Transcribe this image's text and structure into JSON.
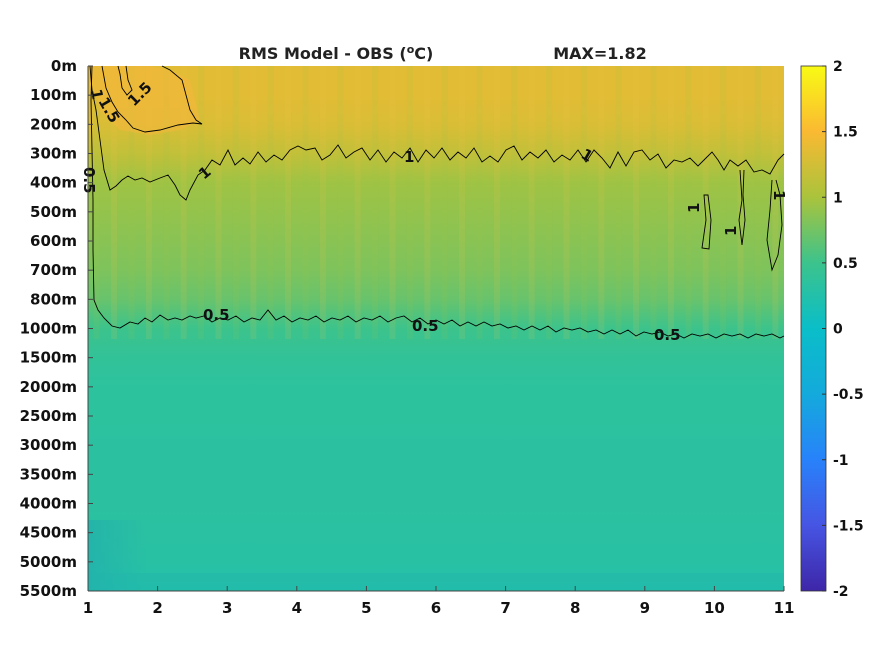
{
  "chart_data": {
    "type": "heatmap",
    "title_main": "RMS Model - OBS (",
    "title_sup": "o",
    "title_end": "C)",
    "title_max": "MAX=1.82",
    "x_ticks": [
      1,
      2,
      3,
      4,
      5,
      6,
      7,
      8,
      9,
      10,
      11
    ],
    "xlim": [
      1,
      11
    ],
    "y_tick_labels": [
      "0m",
      "100m",
      "200m",
      "300m",
      "400m",
      "500m",
      "600m",
      "700m",
      "800m",
      "1000m",
      "1500m",
      "2000m",
      "2500m",
      "3000m",
      "3500m",
      "4000m",
      "4500m",
      "5000m",
      "5500m"
    ],
    "y_reversed": true,
    "colorbar": {
      "range": [
        -2,
        2
      ],
      "ticks": [
        "2",
        "1.5",
        "1",
        "0.5",
        "0",
        "-0.5",
        "-1",
        "-1.5",
        "-2"
      ],
      "colormap": "parula"
    },
    "depth_profile": [
      {
        "depth": "0m",
        "value": 1.35
      },
      {
        "depth": "100m",
        "value": 1.35
      },
      {
        "depth": "200m",
        "value": 1.3
      },
      {
        "depth": "300m",
        "value": 1.15
      },
      {
        "depth": "400m",
        "value": 0.95
      },
      {
        "depth": "500m",
        "value": 0.9
      },
      {
        "depth": "600m",
        "value": 0.85
      },
      {
        "depth": "700m",
        "value": 0.8
      },
      {
        "depth": "800m",
        "value": 0.7
      },
      {
        "depth": "1000m",
        "value": 0.5
      },
      {
        "depth": "1500m",
        "value": 0.4
      },
      {
        "depth": "2000m",
        "value": 0.35
      },
      {
        "depth": "2500m",
        "value": 0.35
      },
      {
        "depth": "3000m",
        "value": 0.33
      },
      {
        "depth": "3500m",
        "value": 0.33
      },
      {
        "depth": "4000m",
        "value": 0.33
      },
      {
        "depth": "4500m",
        "value": 0.32
      },
      {
        "depth": "5000m",
        "value": 0.3
      },
      {
        "depth": "5500m",
        "value": 0.25
      }
    ],
    "contour_levels": [
      0.5,
      1,
      1.5
    ],
    "contour_labels": [
      "1",
      "1.5",
      "1.5",
      "0.5",
      "1",
      "1",
      "1",
      "1",
      "1",
      "0.5",
      "0.5",
      "0.5",
      "1"
    ]
  }
}
